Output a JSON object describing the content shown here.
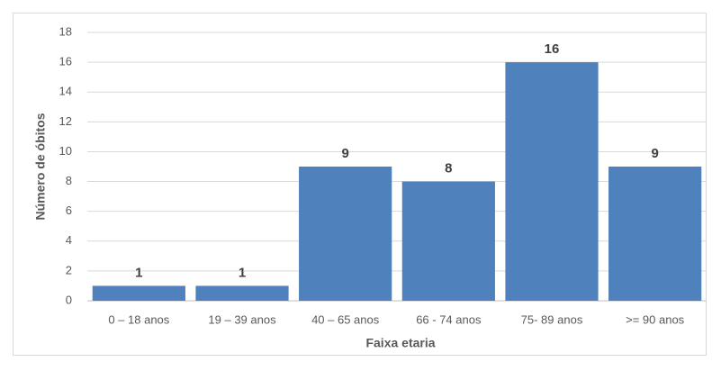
{
  "chart_data": {
    "type": "bar",
    "x_label": "Faixa etaria",
    "y_label": "Número de óbitos",
    "categories": [
      "0 – 18 anos",
      "19 – 39 anos",
      "40 – 65 anos",
      "66 - 74 anos",
      "75- 89 anos",
      ">= 90 anos"
    ],
    "values": [
      1,
      1,
      9,
      8,
      16,
      9
    ],
    "color": "#4f81bd",
    "ylim": [
      0,
      18
    ],
    "yticks": [
      0,
      2,
      4,
      6,
      8,
      10,
      12,
      14,
      16,
      18
    ],
    "grid": true
  }
}
